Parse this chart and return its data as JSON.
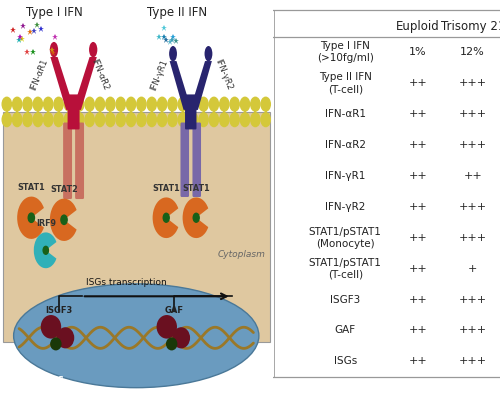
{
  "table_rows": [
    {
      "label": "Type I IFN\n(>10fg/ml)",
      "euploid": "1%",
      "trisomy": "12%"
    },
    {
      "label": "Type II IFN\n(T-cell)",
      "euploid": "++",
      "trisomy": "+++"
    },
    {
      "label": "IFN-αR1",
      "euploid": "++",
      "trisomy": "+++"
    },
    {
      "label": "IFN-αR2",
      "euploid": "++",
      "trisomy": "+++"
    },
    {
      "label": "IFN-γR1",
      "euploid": "++",
      "trisomy": "++"
    },
    {
      "label": "IFN-γR2",
      "euploid": "++",
      "trisomy": "+++"
    },
    {
      "label": "STAT1/pSTAT1\n(Monocyte)",
      "euploid": "++",
      "trisomy": "+++"
    },
    {
      "label": "STAT1/pSTAT1\n(T-cell)",
      "euploid": "++",
      "trisomy": "+"
    },
    {
      "label": "ISGF3",
      "euploid": "++",
      "trisomy": "+++"
    },
    {
      "label": "GAF",
      "euploid": "++",
      "trisomy": "+++"
    },
    {
      "label": "ISGs",
      "euploid": "++",
      "trisomy": "+++"
    }
  ],
  "col_headers": [
    "",
    "Euploid",
    "Trisomy 21"
  ],
  "line_color": "#999999",
  "header_fontsize": 8.5,
  "cell_fontsize": 8,
  "label_fontsize": 7.5,
  "diagram_bg": "#dfc8a0",
  "nucleus_bg": "#6a9bbf",
  "membrane_yellow": "#d4c83a",
  "receptor1_dark": "#b8103a",
  "receptor1_light": "#c87060",
  "receptor2_dark": "#28246e",
  "receptor2_light": "#7868a8",
  "stat_orange": "#d86820",
  "irf9_cyan": "#30b0b8",
  "dna_brown": "#9a7828",
  "complex_red": "#6a1020",
  "complex_green": "#1a3808",
  "arrow_dark": "#111111",
  "text_dark": "#222222",
  "star_colors_I": [
    "#d02020",
    "#e07010",
    "#c030b0",
    "#18901a",
    "#d8d010",
    "#3030d0",
    "#e04040",
    "#901890",
    "#18b0b0",
    "#d05010",
    "#409040",
    "#b010b0",
    "#d09010",
    "#4040c0"
  ],
  "star_colors_II": [
    "#28a0d8",
    "#40b8c8",
    "#1880b0",
    "#50c8d8",
    "#38908c",
    "#60b8cc",
    "#2870a0",
    "#40a0b8"
  ]
}
